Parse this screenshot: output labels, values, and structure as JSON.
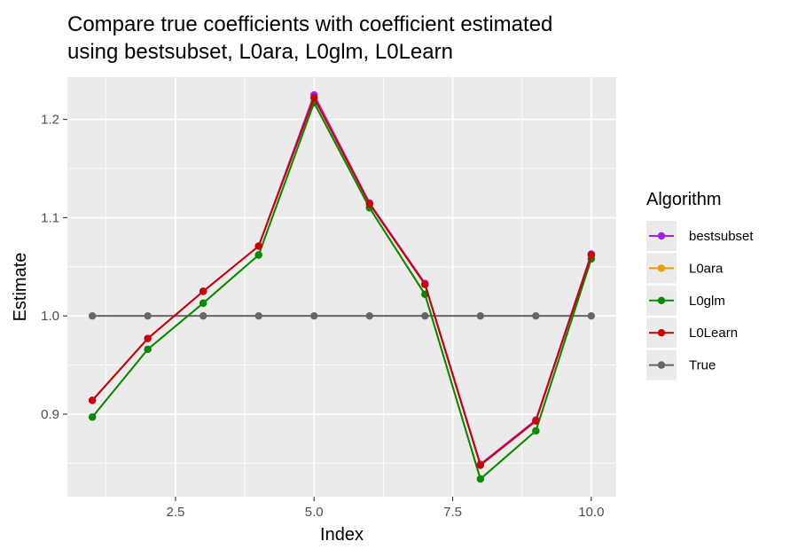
{
  "chart_data": {
    "type": "line",
    "title_lines": [
      "Compare true coefficients with coefficient estimated",
      "using bestsubset, L0ara, L0glm, L0Learn"
    ],
    "xlabel": "Index",
    "ylabel": "Estimate",
    "xlim": [
      0.55,
      10.45
    ],
    "ylim": [
      0.816,
      1.243
    ],
    "x_ticks": [
      2.5,
      5.0,
      7.5,
      10.0
    ],
    "x_tick_labels": [
      "2.5",
      "5.0",
      "7.5",
      "10.0"
    ],
    "y_ticks": [
      0.9,
      1.0,
      1.1,
      1.2
    ],
    "y_tick_labels": [
      "0.9",
      "1.0",
      "1.1",
      "1.2"
    ],
    "grid": true,
    "legend_position": "right",
    "legend_title": "Algorithm",
    "x": [
      1,
      2,
      3,
      4,
      5,
      6,
      7,
      8,
      9,
      10
    ],
    "series": [
      {
        "name": "bestsubset",
        "color": "#a020f0",
        "values": [
          0.914,
          0.977,
          1.025,
          1.071,
          1.225,
          1.115,
          1.033,
          0.849,
          0.894,
          1.063
        ]
      },
      {
        "name": "L0ara",
        "color": "#ee9a00",
        "values": [
          0.897,
          0.966,
          1.013,
          1.062,
          1.217,
          1.11,
          1.022,
          0.834,
          0.883,
          1.058
        ]
      },
      {
        "name": "L0glm",
        "color": "#008b00",
        "values": [
          0.897,
          0.966,
          1.013,
          1.062,
          1.217,
          1.11,
          1.022,
          0.834,
          0.883,
          1.058
        ]
      },
      {
        "name": "L0Learn",
        "color": "#cd0000",
        "values": [
          0.914,
          0.977,
          1.025,
          1.071,
          1.222,
          1.114,
          1.032,
          0.848,
          0.893,
          1.062
        ]
      },
      {
        "name": "True",
        "color": "#666666",
        "values": [
          1.0,
          1.0,
          1.0,
          1.0,
          1.0,
          1.0,
          1.0,
          1.0,
          1.0,
          1.0
        ]
      }
    ],
    "legend_order": [
      "bestsubset",
      "L0ara",
      "L0glm",
      "L0Learn",
      "True"
    ],
    "draw_order": [
      "True",
      "bestsubset",
      "L0ara",
      "L0glm",
      "L0Learn"
    ]
  }
}
